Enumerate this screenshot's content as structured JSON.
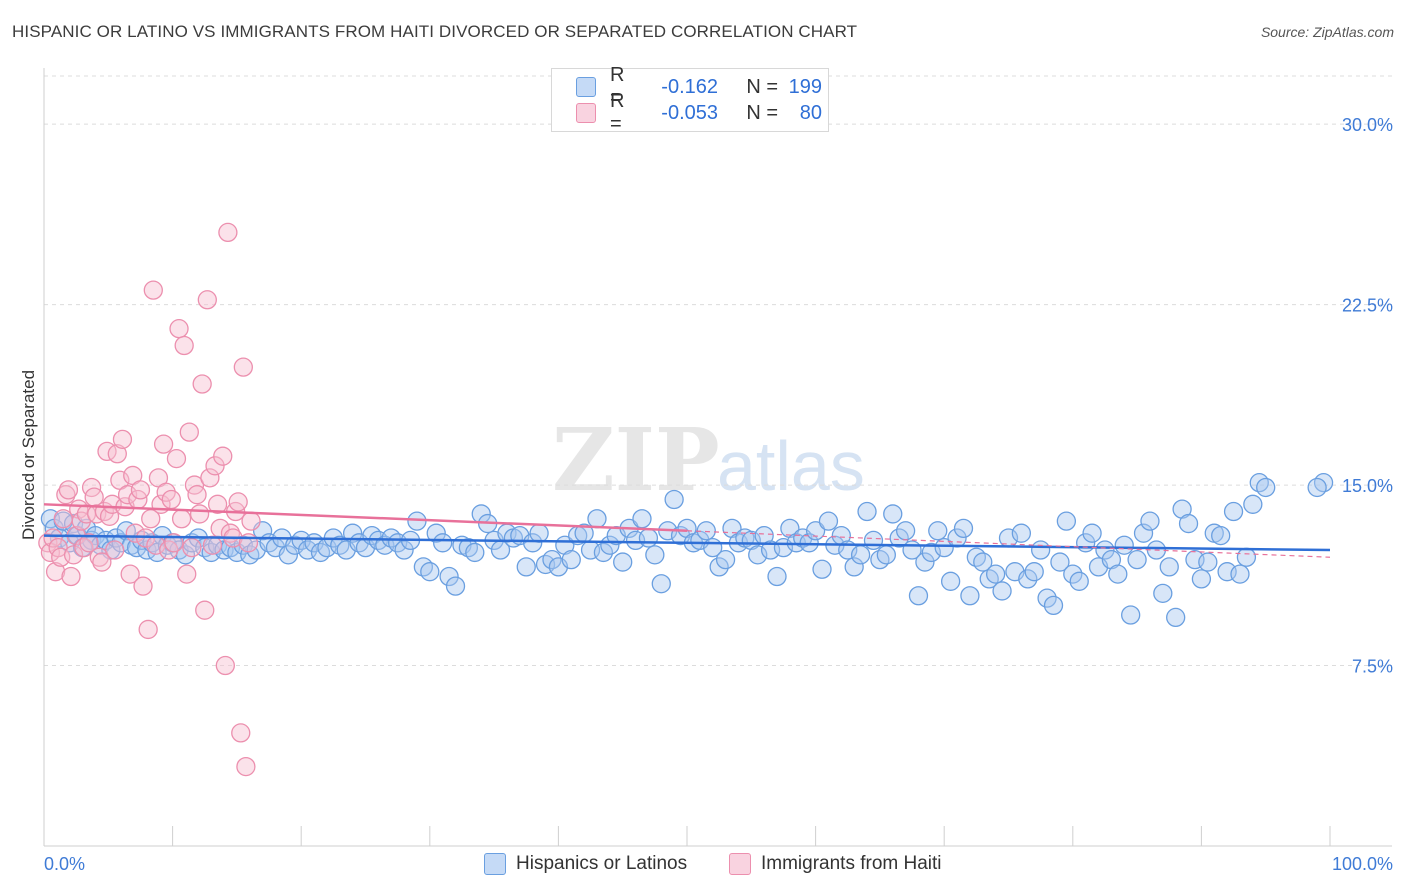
{
  "title": "HISPANIC OR LATINO VS IMMIGRANTS FROM HAITI DIVORCED OR SEPARATED CORRELATION CHART",
  "source": "Source: ZipAtlas.com",
  "watermark": {
    "zip": "ZIP",
    "atlas": "atlas"
  },
  "legend": {
    "rows": [
      {
        "r_label": "R =",
        "r_value": "-0.162",
        "n_label": "N =",
        "n_value": "199"
      },
      {
        "r_label": "R =",
        "r_value": "-0.053",
        "n_label": "N =",
        "n_value": "80"
      }
    ]
  },
  "colors": {
    "blue_fill": "#a9c8f0",
    "blue_stroke": "#6a9fe0",
    "blue_line": "#2f6fd6",
    "pink_fill": "#f6bed0",
    "pink_stroke": "#ec8fae",
    "pink_line": "#e8719a",
    "axis_text": "#3f7bd6",
    "grid": "#dcdcdc"
  },
  "chart_data": {
    "type": "scatter",
    "title": "HISPANIC OR LATINO VS IMMIGRANTS FROM HAITI DIVORCED OR SEPARATED CORRELATION CHART",
    "xlabel": "",
    "ylabel": "Divorced or Separated",
    "xlim": [
      0,
      100
    ],
    "ylim": [
      0,
      32
    ],
    "x_tick_labels": [
      "0.0%",
      "100.0%"
    ],
    "y_ticks": [
      7.5,
      15.0,
      22.5,
      30.0
    ],
    "y_tick_labels": [
      "7.5%",
      "15.0%",
      "22.5%",
      "30.0%"
    ],
    "grid": true,
    "legend_position": "top-center",
    "series": [
      {
        "name": "Hispanics or Latinos",
        "color": "#6a9fe0",
        "trend": {
          "x": [
            0,
            100
          ],
          "y": [
            12.9,
            12.3
          ]
        },
        "points": [
          [
            0.5,
            13.6
          ],
          [
            0.8,
            13.2
          ],
          [
            1.2,
            12.8
          ],
          [
            1.5,
            13.5
          ],
          [
            2,
            12.6
          ],
          [
            2.3,
            13.4
          ],
          [
            2.6,
            12.9
          ],
          [
            3,
            12.4
          ],
          [
            3.3,
            13.2
          ],
          [
            3.7,
            12.7
          ],
          [
            4,
            12.9
          ],
          [
            4.4,
            12.5
          ],
          [
            4.8,
            12.7
          ],
          [
            5.2,
            12.3
          ],
          [
            5.6,
            12.8
          ],
          [
            6,
            12.6
          ],
          [
            6.4,
            13.1
          ],
          [
            6.8,
            12.5
          ],
          [
            7.2,
            12.4
          ],
          [
            7.6,
            12.7
          ],
          [
            8,
            12.3
          ],
          [
            8.4,
            12.6
          ],
          [
            8.8,
            12.2
          ],
          [
            9.2,
            12.9
          ],
          [
            9.6,
            12.5
          ],
          [
            10,
            12.6
          ],
          [
            10.5,
            12.3
          ],
          [
            11,
            12.1
          ],
          [
            11.5,
            12.6
          ],
          [
            12,
            12.8
          ],
          [
            12.5,
            12.4
          ],
          [
            13,
            12.2
          ],
          [
            13.5,
            12.5
          ],
          [
            14,
            12.3
          ],
          [
            14.5,
            12.4
          ],
          [
            15,
            12.2
          ],
          [
            15.5,
            12.5
          ],
          [
            16,
            12.1
          ],
          [
            16.5,
            12.3
          ],
          [
            17,
            13.1
          ],
          [
            17.5,
            12.6
          ],
          [
            18,
            12.4
          ],
          [
            18.5,
            12.8
          ],
          [
            19,
            12.1
          ],
          [
            19.5,
            12.5
          ],
          [
            20,
            12.7
          ],
          [
            20.5,
            12.3
          ],
          [
            21,
            12.6
          ],
          [
            21.5,
            12.2
          ],
          [
            22,
            12.4
          ],
          [
            22.5,
            12.8
          ],
          [
            23,
            12.5
          ],
          [
            23.5,
            12.3
          ],
          [
            24,
            13.0
          ],
          [
            24.5,
            12.6
          ],
          [
            25,
            12.4
          ],
          [
            25.5,
            12.9
          ],
          [
            26,
            12.7
          ],
          [
            26.5,
            12.5
          ],
          [
            27,
            12.8
          ],
          [
            27.5,
            12.6
          ],
          [
            28,
            12.3
          ],
          [
            28.5,
            12.7
          ],
          [
            29,
            13.5
          ],
          [
            29.5,
            11.6
          ],
          [
            30,
            11.4
          ],
          [
            30.5,
            13.0
          ],
          [
            31,
            12.6
          ],
          [
            31.5,
            11.2
          ],
          [
            32,
            10.8
          ],
          [
            32.5,
            12.5
          ],
          [
            33,
            12.4
          ],
          [
            33.5,
            12.2
          ],
          [
            34,
            13.8
          ],
          [
            34.5,
            13.4
          ],
          [
            35,
            12.7
          ],
          [
            35.5,
            12.3
          ],
          [
            36,
            13.0
          ],
          [
            36.5,
            12.8
          ],
          [
            37,
            12.9
          ],
          [
            37.5,
            11.6
          ],
          [
            38,
            12.6
          ],
          [
            38.5,
            13.0
          ],
          [
            39,
            11.7
          ],
          [
            39.5,
            11.9
          ],
          [
            40,
            11.6
          ],
          [
            40.5,
            12.5
          ],
          [
            41,
            11.9
          ],
          [
            41.5,
            12.9
          ],
          [
            42,
            13.0
          ],
          [
            42.5,
            12.3
          ],
          [
            43,
            13.6
          ],
          [
            43.5,
            12.2
          ],
          [
            44,
            12.5
          ],
          [
            44.5,
            12.9
          ],
          [
            45,
            11.8
          ],
          [
            45.5,
            13.2
          ],
          [
            46,
            12.7
          ],
          [
            46.5,
            13.6
          ],
          [
            47,
            12.8
          ],
          [
            47.5,
            12.1
          ],
          [
            48,
            10.9
          ],
          [
            48.5,
            13.1
          ],
          [
            49,
            14.4
          ],
          [
            49.5,
            12.9
          ],
          [
            50,
            13.2
          ],
          [
            50.5,
            12.6
          ],
          [
            51,
            12.7
          ],
          [
            51.5,
            13.1
          ],
          [
            52,
            12.4
          ],
          [
            52.5,
            11.6
          ],
          [
            53,
            11.9
          ],
          [
            53.5,
            13.2
          ],
          [
            54,
            12.6
          ],
          [
            54.5,
            12.8
          ],
          [
            55,
            12.7
          ],
          [
            55.5,
            12.1
          ],
          [
            56,
            12.9
          ],
          [
            56.5,
            12.3
          ],
          [
            57,
            11.2
          ],
          [
            57.5,
            12.4
          ],
          [
            58,
            13.2
          ],
          [
            58.5,
            12.6
          ],
          [
            59,
            12.8
          ],
          [
            59.5,
            12.6
          ],
          [
            60,
            13.1
          ],
          [
            60.5,
            11.5
          ],
          [
            61,
            13.5
          ],
          [
            61.5,
            12.5
          ],
          [
            62,
            12.9
          ],
          [
            62.5,
            12.3
          ],
          [
            63,
            11.6
          ],
          [
            63.5,
            12.1
          ],
          [
            64,
            13.9
          ],
          [
            64.5,
            12.7
          ],
          [
            65,
            11.9
          ],
          [
            65.5,
            12.1
          ],
          [
            66,
            13.8
          ],
          [
            66.5,
            12.8
          ],
          [
            67,
            13.1
          ],
          [
            67.5,
            12.3
          ],
          [
            68,
            10.4
          ],
          [
            68.5,
            11.8
          ],
          [
            69,
            12.2
          ],
          [
            69.5,
            13.1
          ],
          [
            70,
            12.4
          ],
          [
            70.5,
            11.0
          ],
          [
            71,
            12.8
          ],
          [
            71.5,
            13.2
          ],
          [
            72,
            10.4
          ],
          [
            72.5,
            12.0
          ],
          [
            73,
            11.8
          ],
          [
            73.5,
            11.1
          ],
          [
            74,
            11.3
          ],
          [
            74.5,
            10.6
          ],
          [
            75,
            12.8
          ],
          [
            75.5,
            11.4
          ],
          [
            76,
            13.0
          ],
          [
            76.5,
            11.1
          ],
          [
            77,
            11.4
          ],
          [
            77.5,
            12.3
          ],
          [
            78,
            10.3
          ],
          [
            78.5,
            10.0
          ],
          [
            79,
            11.8
          ],
          [
            79.5,
            13.5
          ],
          [
            80,
            11.3
          ],
          [
            80.5,
            11.0
          ],
          [
            81,
            12.6
          ],
          [
            81.5,
            13.0
          ],
          [
            82,
            11.6
          ],
          [
            82.5,
            12.3
          ],
          [
            83,
            11.9
          ],
          [
            83.5,
            11.3
          ],
          [
            84,
            12.5
          ],
          [
            84.5,
            9.6
          ],
          [
            85,
            11.9
          ],
          [
            85.5,
            13.0
          ],
          [
            86,
            13.5
          ],
          [
            86.5,
            12.3
          ],
          [
            87,
            10.5
          ],
          [
            87.5,
            11.6
          ],
          [
            88,
            9.5
          ],
          [
            88.5,
            14.0
          ],
          [
            89,
            13.4
          ],
          [
            89.5,
            11.9
          ],
          [
            90,
            11.1
          ],
          [
            90.5,
            11.8
          ],
          [
            91,
            13.0
          ],
          [
            91.5,
            12.9
          ],
          [
            92,
            11.4
          ],
          [
            92.5,
            13.9
          ],
          [
            93,
            11.3
          ],
          [
            93.5,
            12.0
          ],
          [
            94,
            14.2
          ],
          [
            94.5,
            15.1
          ],
          [
            95,
            14.9
          ],
          [
            99.5,
            15.1
          ],
          [
            99,
            14.9
          ]
        ]
      },
      {
        "name": "Immigrants from Haiti",
        "color": "#ec8fae",
        "trend": {
          "x": [
            0,
            50
          ],
          "y": [
            14.2,
            13.1
          ]
        },
        "points": [
          [
            0.3,
            12.6
          ],
          [
            0.5,
            12.2
          ],
          [
            0.7,
            12.8
          ],
          [
            0.9,
            11.4
          ],
          [
            1.1,
            12.4
          ],
          [
            1.3,
            12.0
          ],
          [
            1.5,
            13.6
          ],
          [
            1.7,
            14.6
          ],
          [
            1.9,
            14.8
          ],
          [
            2.1,
            11.2
          ],
          [
            2.3,
            12.1
          ],
          [
            2.5,
            12.9
          ],
          [
            2.7,
            14.0
          ],
          [
            2.9,
            13.5
          ],
          [
            3.1,
            12.4
          ],
          [
            3.3,
            13.8
          ],
          [
            3.5,
            12.6
          ],
          [
            3.7,
            14.9
          ],
          [
            3.9,
            14.5
          ],
          [
            4.1,
            13.8
          ],
          [
            4.3,
            12.0
          ],
          [
            4.5,
            11.8
          ],
          [
            4.7,
            13.9
          ],
          [
            4.9,
            16.4
          ],
          [
            5.1,
            13.7
          ],
          [
            5.3,
            14.2
          ],
          [
            5.5,
            12.3
          ],
          [
            5.7,
            16.3
          ],
          [
            5.9,
            15.2
          ],
          [
            6.1,
            16.9
          ],
          [
            6.3,
            14.1
          ],
          [
            6.5,
            14.6
          ],
          [
            6.7,
            11.3
          ],
          [
            6.9,
            15.4
          ],
          [
            7.1,
            13.0
          ],
          [
            7.3,
            14.4
          ],
          [
            7.5,
            14.8
          ],
          [
            7.7,
            10.8
          ],
          [
            7.9,
            12.8
          ],
          [
            8.1,
            9.0
          ],
          [
            8.3,
            13.6
          ],
          [
            8.5,
            23.1
          ],
          [
            8.7,
            12.5
          ],
          [
            8.9,
            15.3
          ],
          [
            9.1,
            14.2
          ],
          [
            9.3,
            16.7
          ],
          [
            9.5,
            14.7
          ],
          [
            9.7,
            12.3
          ],
          [
            9.9,
            14.4
          ],
          [
            10.1,
            12.6
          ],
          [
            10.3,
            16.1
          ],
          [
            10.5,
            21.5
          ],
          [
            10.7,
            13.6
          ],
          [
            10.9,
            20.8
          ],
          [
            11.1,
            11.3
          ],
          [
            11.3,
            17.2
          ],
          [
            11.5,
            12.4
          ],
          [
            11.7,
            15.0
          ],
          [
            11.9,
            14.6
          ],
          [
            12.1,
            13.8
          ],
          [
            12.3,
            19.2
          ],
          [
            12.5,
            9.8
          ],
          [
            12.7,
            22.7
          ],
          [
            12.9,
            15.3
          ],
          [
            13.1,
            12.5
          ],
          [
            13.3,
            15.8
          ],
          [
            13.5,
            14.2
          ],
          [
            13.7,
            13.2
          ],
          [
            13.9,
            16.2
          ],
          [
            14.1,
            7.5
          ],
          [
            14.3,
            25.5
          ],
          [
            14.5,
            13.0
          ],
          [
            14.7,
            12.8
          ],
          [
            14.9,
            13.9
          ],
          [
            15.1,
            14.3
          ],
          [
            15.3,
            4.7
          ],
          [
            15.5,
            19.9
          ],
          [
            15.7,
            3.3
          ],
          [
            15.9,
            12.6
          ],
          [
            16.1,
            13.5
          ]
        ]
      }
    ]
  },
  "bottom_legend": [
    {
      "label": "Hispanics or Latinos"
    },
    {
      "label": "Immigrants from Haiti"
    }
  ]
}
